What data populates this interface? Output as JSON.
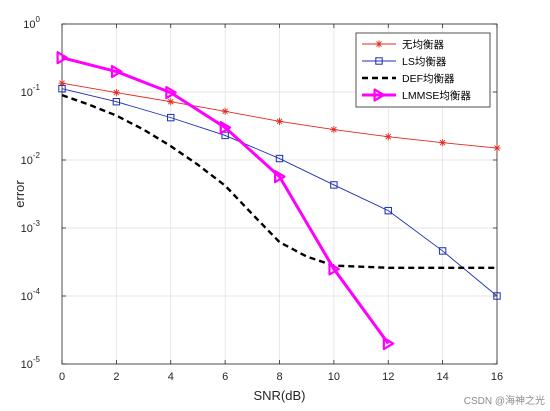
{
  "chart_data": {
    "type": "line",
    "xlabel": "SNR(dB)",
    "ylabel": "error",
    "xlim": [
      0,
      16
    ],
    "ylim": [
      1e-05,
      1
    ],
    "yscale": "log",
    "grid": true,
    "legend_position": "top-right",
    "x_ticks": [
      {
        "value": 0,
        "label": "0"
      },
      {
        "value": 2,
        "label": "2"
      },
      {
        "value": 4,
        "label": "4"
      },
      {
        "value": 6,
        "label": "6"
      },
      {
        "value": 8,
        "label": "8"
      },
      {
        "value": 10,
        "label": "10"
      },
      {
        "value": 12,
        "label": "12"
      },
      {
        "value": 14,
        "label": "14"
      },
      {
        "value": 16,
        "label": "16"
      }
    ],
    "y_ticks": [
      {
        "value": 1,
        "base": "10",
        "exp": "0"
      },
      {
        "value": 0.1,
        "base": "10",
        "exp": "-1"
      },
      {
        "value": 0.01,
        "base": "10",
        "exp": "-2"
      },
      {
        "value": 0.001,
        "base": "10",
        "exp": "-3"
      },
      {
        "value": 0.0001,
        "base": "10",
        "exp": "-4"
      },
      {
        "value": 1e-05,
        "base": "10",
        "exp": "-5"
      }
    ],
    "series": [
      {
        "name": "无均衡器",
        "color": "#e5291f",
        "marker": "asterisk",
        "line_style": "solid",
        "line_width": "thin",
        "x": [
          0,
          2,
          4,
          6,
          8,
          10,
          12,
          14,
          16
        ],
        "y": [
          0.135,
          0.098,
          0.072,
          0.052,
          0.037,
          0.028,
          0.022,
          0.018,
          0.015
        ]
      },
      {
        "name": "LS均衡器",
        "color": "#1c2fb5",
        "marker": "square",
        "line_style": "solid",
        "line_width": "thin",
        "x": [
          0,
          2,
          4,
          6,
          8,
          10,
          12,
          14,
          16
        ],
        "y": [
          0.112,
          0.072,
          0.042,
          0.023,
          0.0105,
          0.0043,
          0.0018,
          0.00046,
          0.0001
        ]
      },
      {
        "name": "DEF均衡器",
        "color": "#000000",
        "marker": "none",
        "line_style": "dashed",
        "line_width": "thick",
        "x": [
          0,
          1,
          2,
          3,
          4,
          5,
          6,
          7,
          8,
          9,
          10,
          11,
          12,
          13,
          14,
          15,
          16
        ],
        "y": [
          0.09,
          0.065,
          0.045,
          0.028,
          0.016,
          0.0085,
          0.0042,
          0.0016,
          0.00062,
          0.00038,
          0.00028,
          0.00027,
          0.00026,
          0.00026,
          0.00026,
          0.00026,
          0.00026
        ]
      },
      {
        "name": "LMMSE均衡器",
        "color": "#ff00ff",
        "marker": "triangle-right",
        "line_style": "solid",
        "line_width": "thick",
        "x": [
          0,
          2,
          4,
          6,
          8,
          10,
          12
        ],
        "y": [
          0.32,
          0.2,
          0.098,
          0.03,
          0.0057,
          0.00025,
          2e-05
        ]
      }
    ]
  },
  "watermark": "CSDN @海神之光"
}
